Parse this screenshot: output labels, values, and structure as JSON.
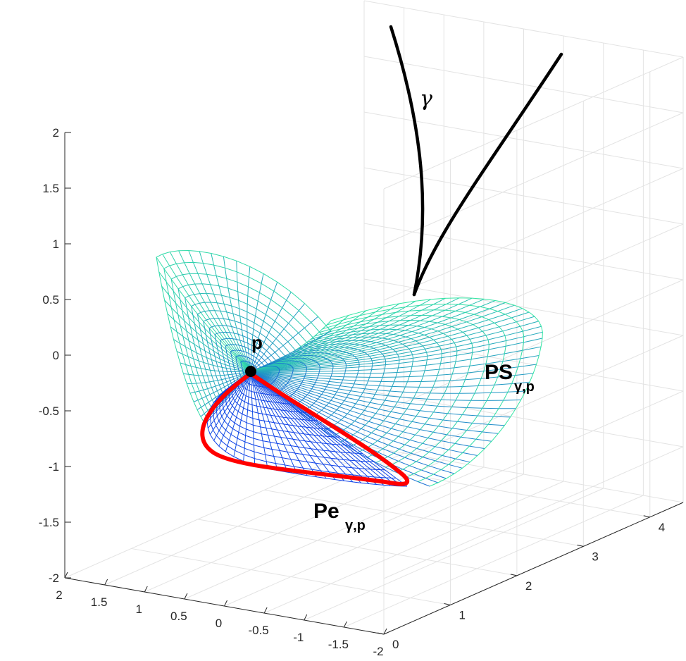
{
  "chart_data": {
    "type": "surface3d",
    "title": "",
    "grid": true,
    "axes": {
      "x": {
        "ticks": [
          2,
          1.5,
          1,
          0.5,
          0,
          -0.5,
          -1,
          -1.5,
          -2
        ],
        "labels": [
          "2",
          "1.5",
          "1",
          "0.5",
          "0",
          "-0.5",
          "-1",
          "-1.5",
          "-2"
        ]
      },
      "y": {
        "ticks": [
          0,
          1,
          2,
          3,
          4
        ],
        "labels": [
          "0",
          "1",
          "2",
          "3",
          "4"
        ]
      },
      "z": {
        "ticks": [
          2,
          1.5,
          1,
          0.5,
          0,
          -0.5,
          -1,
          -1.5,
          -2
        ],
        "labels": [
          "2",
          "1.5",
          "1",
          "0.5",
          "0",
          "-0.5",
          "-1",
          "-1.5",
          "-2"
        ]
      }
    },
    "colors": {
      "surface_low": "#0b2df0",
      "surface_high": "#35f0a0",
      "curve": "#000000",
      "pedal": "#ff0000",
      "grid": "#e3e3e3",
      "axis": "#262626"
    },
    "annotations": {
      "gamma": "γ",
      "point": "p",
      "surface_main": "PS",
      "surface_sub": "γ,p",
      "pedal_main": "Pe",
      "pedal_sub": "γ,p"
    }
  }
}
